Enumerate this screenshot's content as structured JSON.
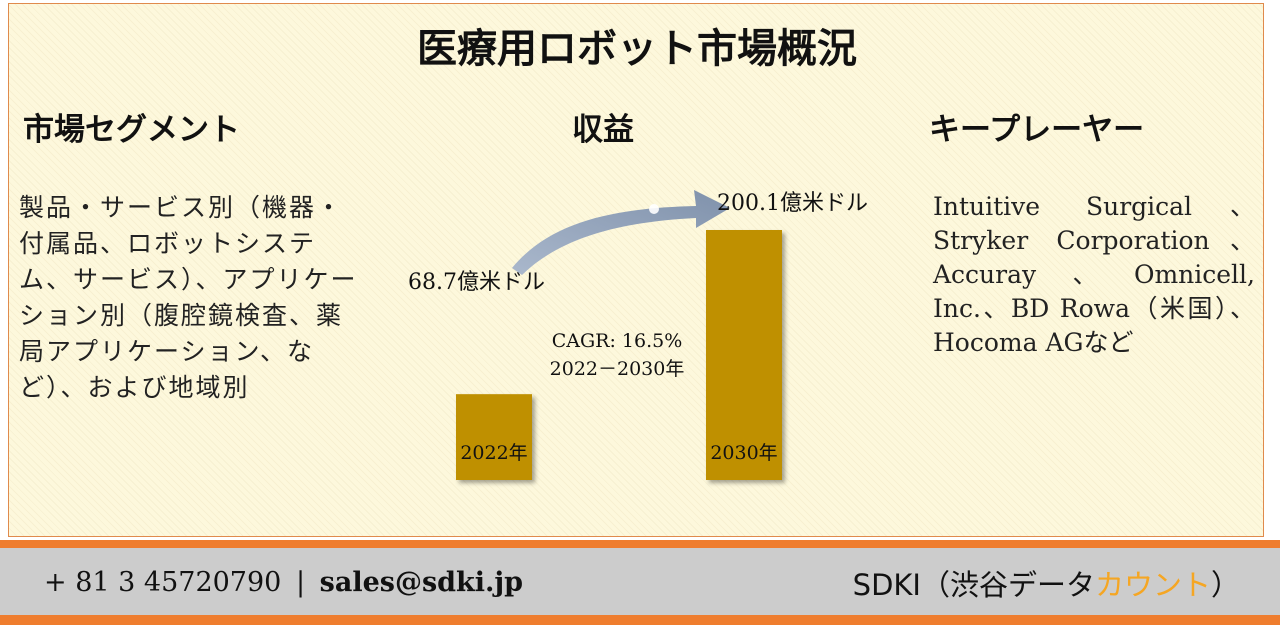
{
  "title": "医療用ロボット市場概況",
  "segments": {
    "heading": "市場セグメント",
    "text": "製品・サービス別（機器・付属品、ロボットシステム、サービス）、アプリケーション別（腹腔鏡検査、薬局アプリケーション、など）、および地域別"
  },
  "revenue": {
    "heading": "収益"
  },
  "players": {
    "heading": "キープレーヤー",
    "text": "Intuitive Surgical、Stryker Corporation、Accuray、Omnicell, Inc.、BD Rowa（米国）、Hocoma AGなど"
  },
  "chart_data": {
    "type": "bar",
    "categories": [
      "2022年",
      "2030年"
    ],
    "values": [
      68.7,
      200.1
    ],
    "value_labels": [
      "68.7億米ドル",
      "200.1億米ドル"
    ],
    "unit": "億米ドル",
    "cagr_label": "CAGR: 16.5%",
    "cagr_period": "2022－2030年",
    "bar_color": "#bf9000",
    "arrow_color": "#8497b0"
  },
  "footer": {
    "phone": "+ 81 3 45720790",
    "separator": "|",
    "email": "sales@sdki.jp",
    "brand_main": "SDKI（渋谷データ",
    "brand_accent": "カウント",
    "brand_close": "）",
    "accent_color": "#f5a623",
    "stripe_color": "#ef7d2e"
  }
}
